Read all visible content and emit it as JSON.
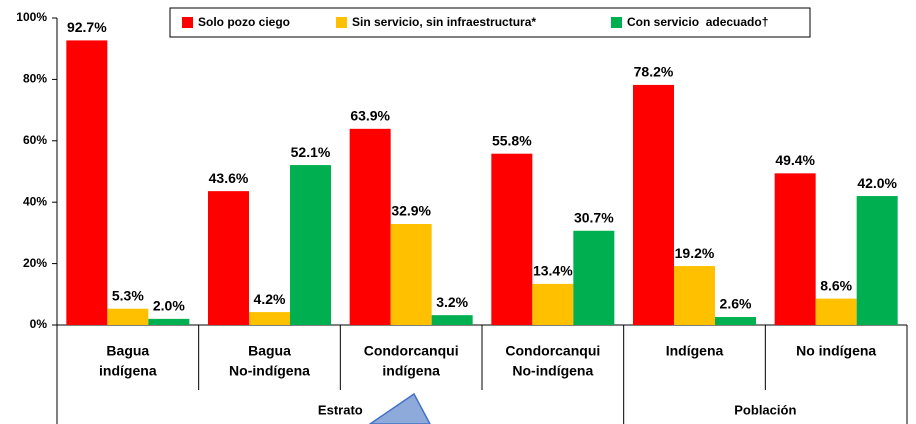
{
  "chart_data": {
    "type": "bar",
    "categories": [
      [
        "Bagua",
        "indígena"
      ],
      [
        "Bagua",
        "No-indígena"
      ],
      [
        "Condorcanqui",
        "indígena"
      ],
      [
        "Condorcanqui",
        "No-indígena"
      ],
      [
        "Indígena"
      ],
      [
        "No indígena"
      ]
    ],
    "category_groups": [
      "Estrato",
      "Población"
    ],
    "series": [
      {
        "name": "Solo pozo ciego",
        "color": "#ff0000",
        "values": [
          92.7,
          43.6,
          63.9,
          55.8,
          78.2,
          49.4
        ],
        "value_labels": [
          "92.7%",
          "43.6%",
          "63.9%",
          "55.8%",
          "78.2%",
          "49.4%"
        ]
      },
      {
        "name": "Sin servicio, sin infraestructura*",
        "color": "#ffc000",
        "values": [
          5.3,
          4.2,
          32.9,
          13.4,
          19.2,
          8.6
        ],
        "value_labels": [
          "5.3%",
          "4.2%",
          "32.9%",
          "13.4%",
          "19.2%",
          "8.6%"
        ]
      },
      {
        "name": "Con servicio  adecuado†",
        "color": "#00b050",
        "values": [
          2.0,
          52.1,
          3.2,
          30.7,
          2.6,
          42.0
        ],
        "value_labels": [
          "2.0%",
          "52.1%",
          "3.2%",
          "30.7%",
          "2.6%",
          "42.0%"
        ]
      }
    ],
    "ylim": [
      0,
      100
    ],
    "yticks": [
      {
        "value": 0,
        "label": "0%"
      },
      {
        "value": 20,
        "label": "20%"
      },
      {
        "value": 40,
        "label": "40%"
      },
      {
        "value": 60,
        "label": "60%"
      },
      {
        "value": 80,
        "label": "80%"
      },
      {
        "value": 100,
        "label": "100%"
      }
    ],
    "grid": false,
    "legend": "top"
  }
}
